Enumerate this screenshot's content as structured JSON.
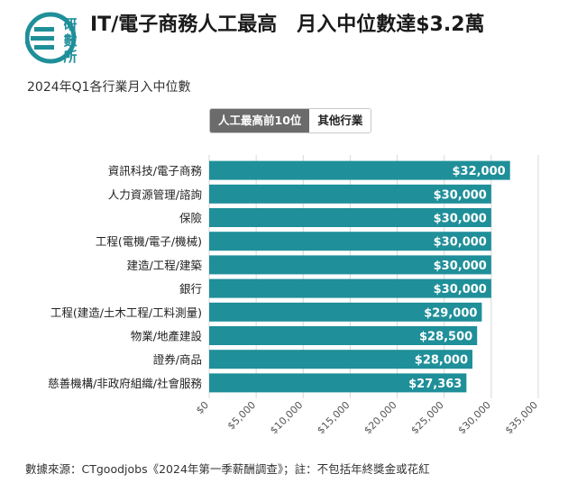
{
  "header": {
    "logo_chars": [
      "研",
      "數",
      "所"
    ],
    "title": "IT/電子商務人工最高　月入中位數達$3.2萬",
    "subtitle": "2024年Q1各行業月入中位數"
  },
  "tabs": [
    {
      "label": "人工最高前10位",
      "active": true
    },
    {
      "label": "其他行業",
      "active": false
    }
  ],
  "colors": {
    "bar": "#1f8f99",
    "grid": "#d8d8d8",
    "axis_text": "#555555",
    "tab_active": "#6b6b6b"
  },
  "chart_data": {
    "type": "bar",
    "orientation": "horizontal",
    "categories": [
      "資訊科技/電子商務",
      "人力資源管理/諮詢",
      "保險",
      "工程(電機/電子/機械)",
      "建造/工程/建築",
      "銀行",
      "工程(建造/土木工程/工料測量)",
      "物業/地產建設",
      "證券/商品",
      "慈善機構/非政府組織/社會服務"
    ],
    "values": [
      32000,
      30000,
      30000,
      30000,
      30000,
      30000,
      29000,
      28500,
      28000,
      27363
    ],
    "value_labels": [
      "$32,000",
      "$30,000",
      "$30,000",
      "$30,000",
      "$30,000",
      "$30,000",
      "$29,000",
      "$28,500",
      "$28,000",
      "$27,363"
    ],
    "xlim": [
      0,
      35000
    ],
    "x_ticks": [
      0,
      5000,
      10000,
      15000,
      20000,
      25000,
      30000,
      35000
    ],
    "x_tick_labels": [
      "$0",
      "$5,000",
      "$10,000",
      "$15,000",
      "$20,000",
      "$25,000",
      "$30,000",
      "$35,000"
    ],
    "grid": true,
    "title": "",
    "xlabel": "",
    "ylabel": ""
  },
  "footer": {
    "source": "數據來源：CTgoodjobs《2024年第一季薪酬調查》；註：不包括年終獎金或花紅"
  }
}
